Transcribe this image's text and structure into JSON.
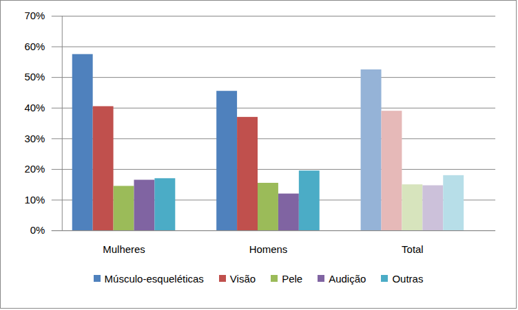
{
  "chart_data": {
    "type": "bar",
    "categories": [
      "Mulheres",
      "Homens",
      "Total"
    ],
    "series": [
      {
        "name": "Músculo-esqueléticas",
        "color": "#4F81BD",
        "colors": [
          "#4F81BD",
          "#4F81BD",
          "#95B3D7"
        ],
        "values": [
          57.5,
          45.5,
          52.5
        ]
      },
      {
        "name": "Visão",
        "color": "#C0504D",
        "colors": [
          "#C0504D",
          "#C0504D",
          "#E6B9B8"
        ],
        "values": [
          40.5,
          37,
          39
        ]
      },
      {
        "name": "Pele",
        "color": "#9BBB59",
        "colors": [
          "#9BBB59",
          "#9BBB59",
          "#D7E4BD"
        ],
        "values": [
          14.5,
          15.5,
          15
        ]
      },
      {
        "name": "Audição",
        "color": "#8064A2",
        "colors": [
          "#8064A2",
          "#8064A2",
          "#CCC1DA"
        ],
        "values": [
          16.5,
          12,
          14.7
        ]
      },
      {
        "name": "Outras",
        "color": "#4BACC6",
        "colors": [
          "#4BACC6",
          "#4BACC6",
          "#B7DEE8"
        ],
        "values": [
          17,
          19.5,
          18
        ]
      }
    ],
    "ylim": [
      0,
      70
    ],
    "yticks": [
      {
        "value": 0,
        "label": "0%"
      },
      {
        "value": 10,
        "label": "10%"
      },
      {
        "value": 20,
        "label": "20%"
      },
      {
        "value": 30,
        "label": "30%"
      },
      {
        "value": 40,
        "label": "40%"
      },
      {
        "value": 50,
        "label": "50%"
      },
      {
        "value": 60,
        "label": "60%"
      },
      {
        "value": 70,
        "label": "70%"
      }
    ],
    "grid": true,
    "legend": "bottom"
  }
}
